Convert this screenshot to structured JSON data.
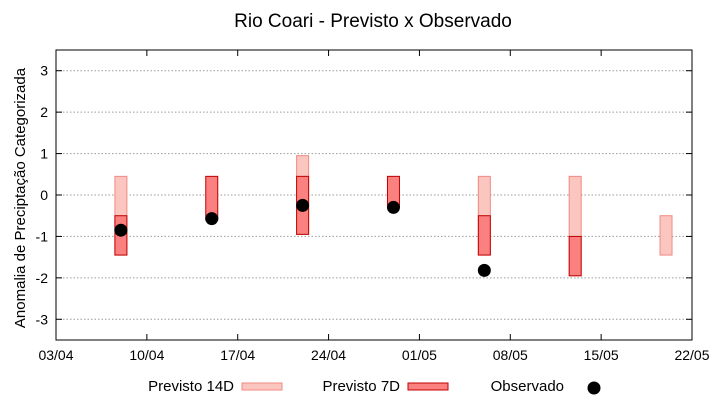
{
  "chart_data": {
    "type": "range_bar",
    "title": "Rio Coari - Previsto x Observado",
    "xlabel": "",
    "ylabel": "Anomalia de Preciptação Categorizada",
    "xlim": [
      "2024-04-03",
      "2024-05-22"
    ],
    "ylim": [
      -3.5,
      3.5
    ],
    "x_ticks": [
      "03/04",
      "10/04",
      "17/04",
      "24/04",
      "01/05",
      "08/05",
      "15/05",
      "22/05"
    ],
    "y_ticks": [
      3,
      2,
      1,
      0,
      -1,
      -2,
      -3
    ],
    "grid": true,
    "legend_position": "bottom",
    "series": [
      {
        "name": "Previsto 14D",
        "color_fill": "#fbc6c0",
        "color_edge": "#f08a82",
        "points": [
          {
            "x": "2024-04-08",
            "low": -1.45,
            "high": 0.45
          },
          {
            "x": "2024-04-22",
            "low": -0.95,
            "high": 0.95
          },
          {
            "x": "2024-05-06",
            "low": -1.45,
            "high": 0.45
          },
          {
            "x": "2024-05-13",
            "low": -1.95,
            "high": 0.45
          },
          {
            "x": "2024-05-20",
            "low": -1.45,
            "high": -0.5
          }
        ]
      },
      {
        "name": "Previsto 7D",
        "color_fill": "#fb8080",
        "color_edge": "#c00000",
        "points": [
          {
            "x": "2024-04-08",
            "low": -1.45,
            "high": -0.5
          },
          {
            "x": "2024-04-15",
            "low": -0.6,
            "high": 0.45
          },
          {
            "x": "2024-04-22",
            "low": -0.95,
            "high": 0.45
          },
          {
            "x": "2024-04-29",
            "low": -0.3,
            "high": 0.45
          },
          {
            "x": "2024-05-06",
            "low": -1.45,
            "high": -0.5
          },
          {
            "x": "2024-05-13",
            "low": -1.95,
            "high": -1.0
          }
        ]
      },
      {
        "name": "Observado",
        "color": "#000000",
        "points": [
          {
            "x": "2024-04-08",
            "y": -0.85
          },
          {
            "x": "2024-04-15",
            "y": -0.57
          },
          {
            "x": "2024-04-22",
            "y": -0.25
          },
          {
            "x": "2024-04-29",
            "y": -0.3
          },
          {
            "x": "2024-05-06",
            "y": -1.82
          }
        ]
      }
    ]
  }
}
